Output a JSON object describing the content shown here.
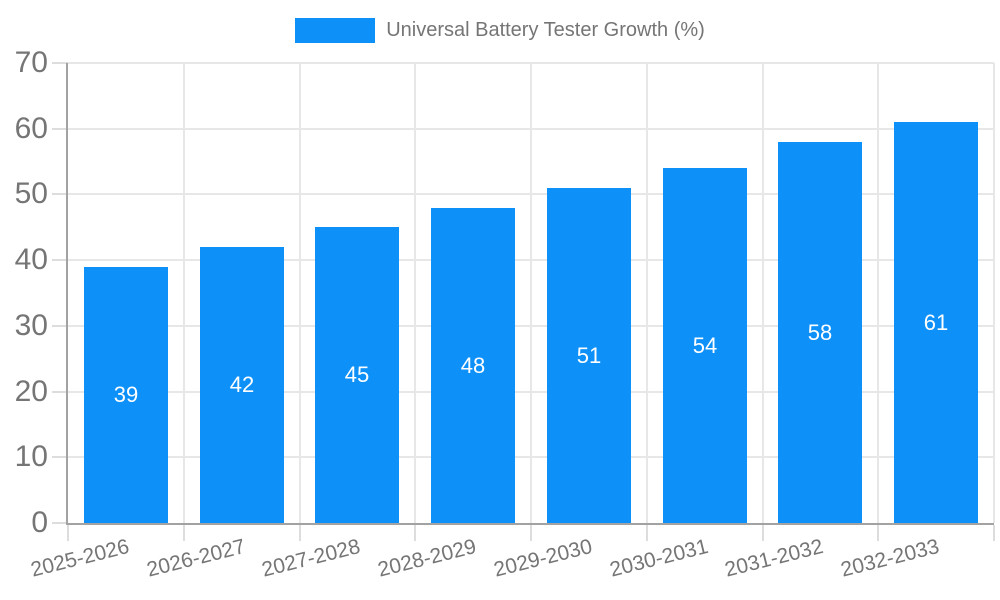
{
  "chart_data": {
    "type": "bar",
    "title": "Universal Battery Tester Growth (%)",
    "categories": [
      "2025-2026",
      "2026-2027",
      "2027-2028",
      "2028-2029",
      "2029-2030",
      "2030-2031",
      "2031-2032",
      "2032-2033"
    ],
    "values": [
      39,
      42,
      45,
      48,
      51,
      54,
      58,
      61
    ],
    "xlabel": "",
    "ylabel": "",
    "ylim": [
      0,
      70
    ],
    "yticks": [
      0,
      10,
      20,
      30,
      40,
      50,
      60,
      70
    ],
    "grid": true,
    "legend_position": "top",
    "bar_color": "#0e90f9",
    "value_label_color": "#ffffff",
    "axis_text_color": "#757575",
    "gridline_color": "#e7e7e7",
    "axis_line_color": "#a2a2a2"
  }
}
